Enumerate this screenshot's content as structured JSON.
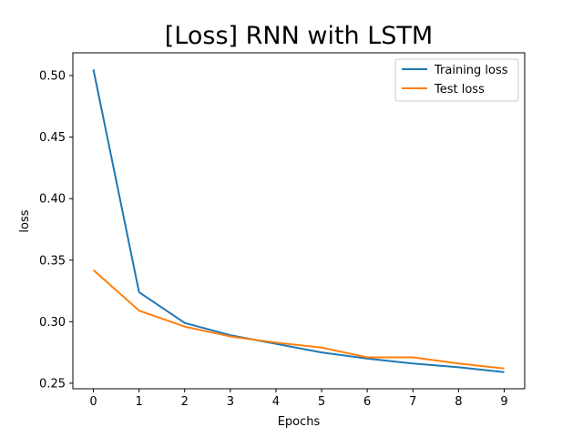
{
  "chart_data": {
    "type": "line",
    "title": "[Loss] RNN with LSTM",
    "xlabel": "Epochs",
    "ylabel": "loss",
    "x": [
      0,
      1,
      2,
      3,
      4,
      5,
      6,
      7,
      8,
      9
    ],
    "xticks": [
      "0",
      "1",
      "2",
      "3",
      "4",
      "5",
      "6",
      "7",
      "8",
      "9"
    ],
    "yticks": [
      "0.25",
      "0.30",
      "0.35",
      "0.40",
      "0.45",
      "0.50"
    ],
    "ylim": [
      0.2455,
      0.5185
    ],
    "xlim": [
      -0.45,
      9.45
    ],
    "grid": false,
    "legend_position": "upper right",
    "series": [
      {
        "name": "Training loss",
        "color": "#1f77b4",
        "values": [
          0.505,
          0.324,
          0.299,
          0.289,
          0.282,
          0.275,
          0.27,
          0.266,
          0.263,
          0.259
        ]
      },
      {
        "name": "Test loss",
        "color": "#ff7f0e",
        "values": [
          0.342,
          0.309,
          0.296,
          0.288,
          0.283,
          0.279,
          0.271,
          0.271,
          0.266,
          0.262
        ]
      }
    ]
  }
}
